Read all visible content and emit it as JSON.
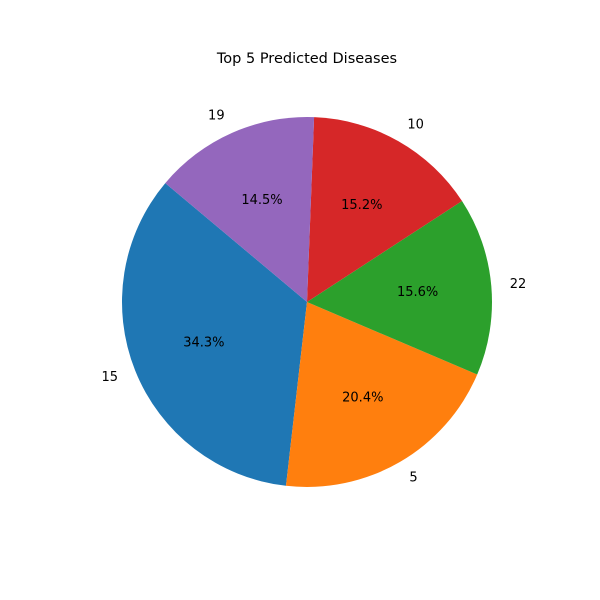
{
  "chart_data": {
    "type": "pie",
    "title": "Top 5 Predicted Diseases",
    "start_angle_deg": 140,
    "direction": "counterclockwise",
    "slices": [
      {
        "label": "15",
        "value": 34.3,
        "pct_text": "34.3%",
        "color": "#1f77b4"
      },
      {
        "label": "5",
        "value": 20.4,
        "pct_text": "20.4%",
        "color": "#ff7f0e"
      },
      {
        "label": "22",
        "value": 15.6,
        "pct_text": "15.6%",
        "color": "#2ca02c"
      },
      {
        "label": "10",
        "value": 15.2,
        "pct_text": "15.2%",
        "color": "#d62728"
      },
      {
        "label": "19",
        "value": 14.5,
        "pct_text": "14.5%",
        "color": "#9467bd"
      }
    ]
  }
}
